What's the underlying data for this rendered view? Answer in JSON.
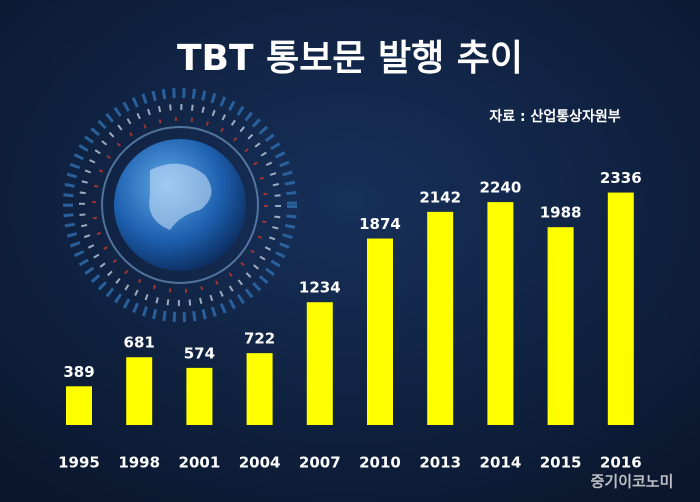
{
  "chart_data": {
    "type": "bar",
    "title": "TBT 통보문 발행 추이",
    "source": "자료 : 산업통상자원부",
    "categories": [
      "1995",
      "1998",
      "2001",
      "2004",
      "2007",
      "2010",
      "2013",
      "2014",
      "2015",
      "2016"
    ],
    "values": [
      389,
      681,
      574,
      722,
      1234,
      1874,
      2142,
      2240,
      1988,
      2336
    ],
    "color": "#ffff00",
    "watermark": "중기이코노미"
  }
}
